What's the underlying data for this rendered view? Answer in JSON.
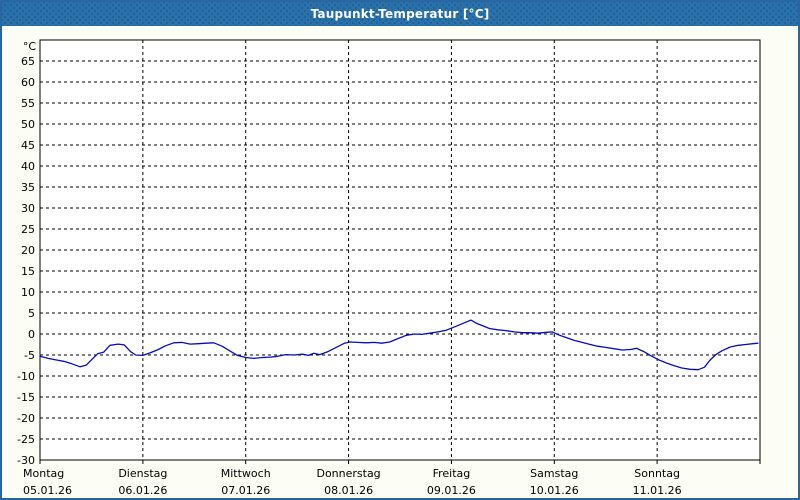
{
  "window": {
    "title": "Taupunkt-Temperatur [°C]"
  },
  "colors": {
    "titlebar": "#2a72a9",
    "titlebar_dots": "#1f619a",
    "frame": "#2766a0",
    "page_bg": "#fcfdf5",
    "plot_bg": "#ffffff",
    "grid": "#000000",
    "line": "#0a0ac0",
    "text": "#000000"
  },
  "chart_data": {
    "type": "line",
    "title": "Taupunkt-Temperatur [°C]",
    "ylabel": "°C",
    "ylim": [
      -30,
      70
    ],
    "ytick_step": 5,
    "ytick_label_min": -30,
    "ytick_label_max": 65,
    "grid": "dashed",
    "legend": "none",
    "xlim_days": [
      0,
      7
    ],
    "x_days": [
      {
        "weekday": "Montag",
        "date": "05.01.26"
      },
      {
        "weekday": "Dienstag",
        "date": "06.01.26"
      },
      {
        "weekday": "Mittwoch",
        "date": "07.01.26"
      },
      {
        "weekday": "Donnerstag",
        "date": "08.01.26"
      },
      {
        "weekday": "Freitag",
        "date": "09.01.26"
      },
      {
        "weekday": "Samstag",
        "date": "10.01.26"
      },
      {
        "weekday": "Sonntag",
        "date": "11.01.26"
      }
    ],
    "series": [
      {
        "name": "Taupunkt-Temperatur",
        "color": "#0a0ac0",
        "points": [
          [
            0.0,
            -5.3
          ],
          [
            0.08,
            -5.8
          ],
          [
            0.16,
            -6.2
          ],
          [
            0.23,
            -6.5
          ],
          [
            0.31,
            -7.1
          ],
          [
            0.39,
            -7.8
          ],
          [
            0.45,
            -7.4
          ],
          [
            0.51,
            -5.9
          ],
          [
            0.56,
            -4.7
          ],
          [
            0.62,
            -4.3
          ],
          [
            0.68,
            -2.7
          ],
          [
            0.76,
            -2.4
          ],
          [
            0.82,
            -2.6
          ],
          [
            0.88,
            -4.2
          ],
          [
            0.93,
            -5.0
          ],
          [
            1.0,
            -5.1
          ],
          [
            1.07,
            -4.5
          ],
          [
            1.15,
            -3.7
          ],
          [
            1.22,
            -2.8
          ],
          [
            1.3,
            -2.1
          ],
          [
            1.38,
            -2.0
          ],
          [
            1.46,
            -2.4
          ],
          [
            1.54,
            -2.3
          ],
          [
            1.61,
            -2.2
          ],
          [
            1.69,
            -2.1
          ],
          [
            1.77,
            -2.9
          ],
          [
            1.85,
            -4.1
          ],
          [
            1.92,
            -5.1
          ],
          [
            2.0,
            -5.6
          ],
          [
            2.08,
            -5.8
          ],
          [
            2.16,
            -5.6
          ],
          [
            2.24,
            -5.5
          ],
          [
            2.31,
            -5.3
          ],
          [
            2.39,
            -4.9
          ],
          [
            2.47,
            -5.0
          ],
          [
            2.55,
            -4.8
          ],
          [
            2.61,
            -5.1
          ],
          [
            2.66,
            -4.6
          ],
          [
            2.72,
            -4.9
          ],
          [
            2.8,
            -4.2
          ],
          [
            2.88,
            -3.2
          ],
          [
            2.96,
            -2.2
          ],
          [
            3.01,
            -1.9
          ],
          [
            3.09,
            -2.0
          ],
          [
            3.17,
            -2.1
          ],
          [
            3.25,
            -2.0
          ],
          [
            3.32,
            -2.2
          ],
          [
            3.4,
            -1.9
          ],
          [
            3.48,
            -1.1
          ],
          [
            3.56,
            -0.3
          ],
          [
            3.64,
            0.0
          ],
          [
            3.71,
            -0.1
          ],
          [
            3.79,
            0.2
          ],
          [
            3.87,
            0.5
          ],
          [
            3.95,
            0.9
          ],
          [
            4.01,
            1.5
          ],
          [
            4.08,
            2.2
          ],
          [
            4.14,
            2.8
          ],
          [
            4.19,
            3.3
          ],
          [
            4.24,
            2.6
          ],
          [
            4.3,
            2.0
          ],
          [
            4.37,
            1.3
          ],
          [
            4.45,
            1.0
          ],
          [
            4.53,
            0.8
          ],
          [
            4.61,
            0.5
          ],
          [
            4.69,
            0.3
          ],
          [
            4.76,
            0.3
          ],
          [
            4.84,
            0.2
          ],
          [
            4.92,
            0.4
          ],
          [
            4.98,
            0.5
          ],
          [
            5.04,
            -0.2
          ],
          [
            5.11,
            -0.8
          ],
          [
            5.19,
            -1.5
          ],
          [
            5.27,
            -2.0
          ],
          [
            5.35,
            -2.5
          ],
          [
            5.42,
            -2.9
          ],
          [
            5.5,
            -3.2
          ],
          [
            5.58,
            -3.5
          ],
          [
            5.66,
            -3.8
          ],
          [
            5.74,
            -3.7
          ],
          [
            5.8,
            -3.4
          ],
          [
            5.87,
            -4.2
          ],
          [
            5.94,
            -5.2
          ],
          [
            6.01,
            -6.1
          ],
          [
            6.09,
            -6.9
          ],
          [
            6.16,
            -7.5
          ],
          [
            6.24,
            -8.1
          ],
          [
            6.32,
            -8.4
          ],
          [
            6.4,
            -8.5
          ],
          [
            6.46,
            -7.9
          ],
          [
            6.51,
            -6.3
          ],
          [
            6.57,
            -4.9
          ],
          [
            6.63,
            -4.0
          ],
          [
            6.71,
            -3.1
          ],
          [
            6.79,
            -2.7
          ],
          [
            6.86,
            -2.5
          ],
          [
            6.93,
            -2.3
          ],
          [
            6.98,
            -2.2
          ]
        ]
      }
    ]
  }
}
